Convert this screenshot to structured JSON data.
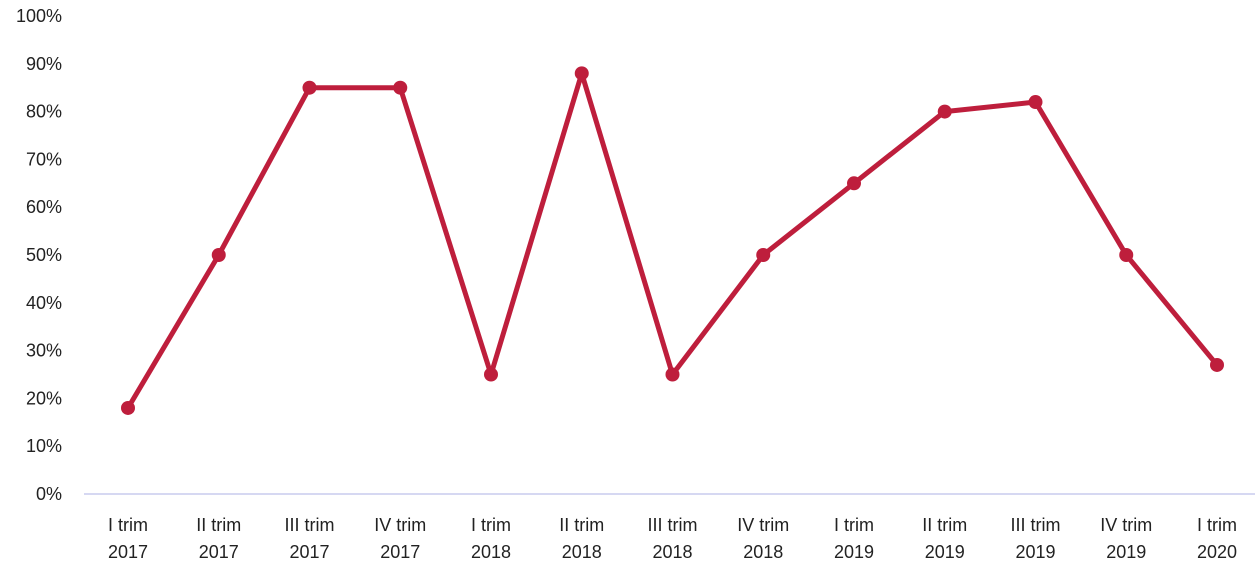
{
  "chart_data": {
    "type": "line",
    "title": "",
    "xlabel": "",
    "ylabel": "",
    "categories": [
      [
        "I trim",
        "2017"
      ],
      [
        "II trim",
        "2017"
      ],
      [
        "III trim",
        "2017"
      ],
      [
        "IV trim",
        "2017"
      ],
      [
        "I trim",
        "2018"
      ],
      [
        "II trim",
        "2018"
      ],
      [
        "III trim",
        "2018"
      ],
      [
        "IV trim",
        "2018"
      ],
      [
        "I trim",
        "2019"
      ],
      [
        "II trim",
        "2019"
      ],
      [
        "III trim",
        "2019"
      ],
      [
        "IV trim",
        "2019"
      ],
      [
        "I trim",
        "2020"
      ]
    ],
    "series": [
      {
        "values": [
          0.18,
          0.5,
          0.85,
          0.85,
          0.25,
          0.88,
          0.25,
          0.5,
          0.65,
          0.8,
          0.82,
          0.5,
          0.27
        ]
      }
    ],
    "ylim": [
      0,
      1
    ],
    "yticks": [
      "0%",
      "10%",
      "20%",
      "30%",
      "40%",
      "50%",
      "60%",
      "70%",
      "80%",
      "90%",
      "100%"
    ],
    "grid": false,
    "legend": "none",
    "colors": {
      "line": "#be1e3c",
      "axis": "#c9cbee",
      "text": "#222222"
    }
  }
}
